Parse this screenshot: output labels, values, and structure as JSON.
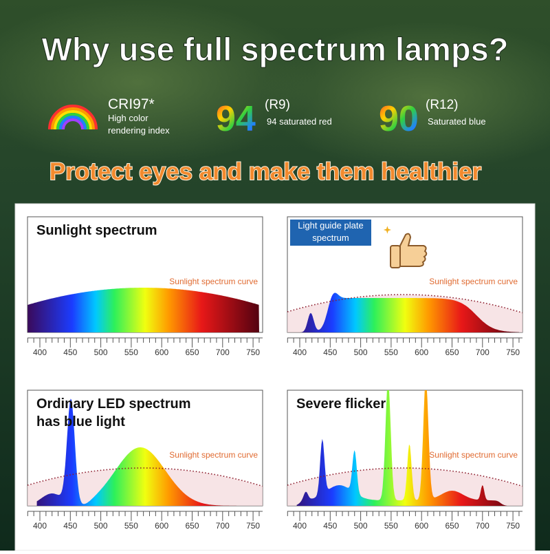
{
  "header": {
    "title": "Why use full spectrum lamps?"
  },
  "features": [
    {
      "label": "CRI97*",
      "description": [
        "High color",
        "rendering index"
      ]
    },
    {
      "number": "94",
      "code": "(R9)",
      "description": "94 saturated red"
    },
    {
      "number": "90",
      "code": "(R12)",
      "description": "Saturated blue"
    }
  ],
  "subtitle": "Protect eyes and make them healthier",
  "axis_ticks": [
    "400",
    "450",
    "500",
    "550",
    "600",
    "650",
    "700",
    "750"
  ],
  "panels": [
    {
      "title": [
        "Sunlight spectrum"
      ],
      "curve_label": "Sunlight spectrum curve"
    },
    {
      "title": [
        "Light guide plate",
        "spectrum"
      ],
      "curve_label": "Sunlight spectrum curve"
    },
    {
      "title": [
        "Ordinary LED spectrum",
        "has blue light"
      ],
      "curve_label": "Sunlight spectrum curve"
    },
    {
      "title": [
        "Severe flicker"
      ],
      "curve_label": "Sunlight spectrum curve"
    }
  ]
}
